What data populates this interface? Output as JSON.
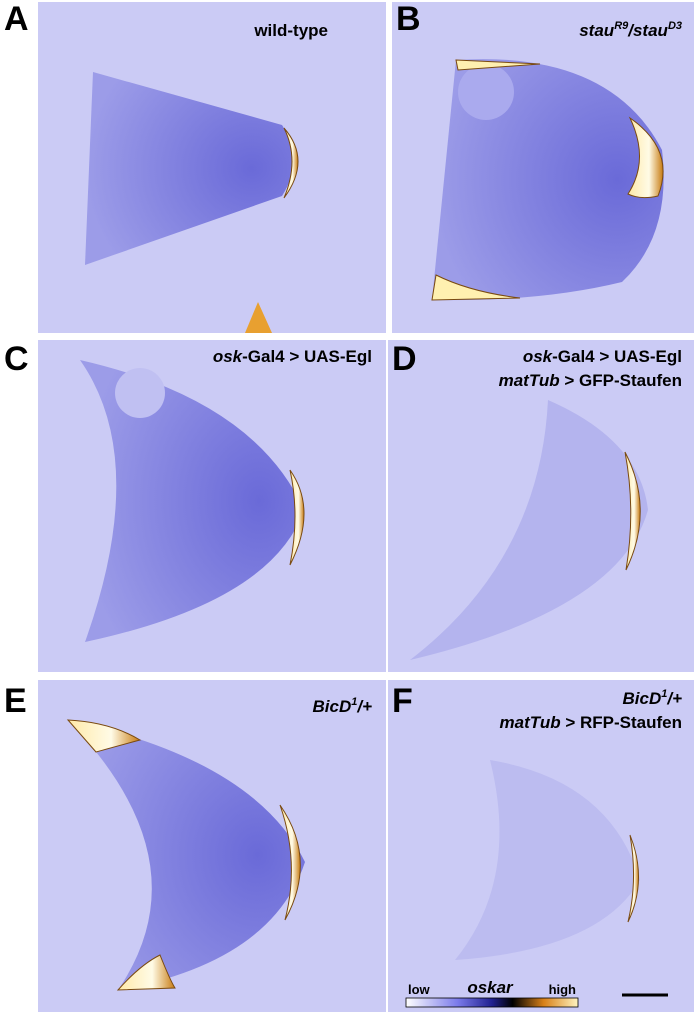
{
  "panels": [
    {
      "letter": "A",
      "lines": [
        [
          "wild-type"
        ]
      ]
    },
    {
      "letter": "B",
      "lines": [
        [
          "stau",
          "R9",
          "/stau",
          "D3"
        ]
      ]
    },
    {
      "letter": "C",
      "lines": [
        [
          "osk",
          "-Gal4 > UAS-Egl"
        ]
      ]
    },
    {
      "letter": "D",
      "lines": [
        [
          "osk",
          "-Gal4 > UAS-Egl"
        ],
        [
          "matTub",
          " > GFP-Staufen"
        ]
      ]
    },
    {
      "letter": "E",
      "lines": [
        [
          "BicD",
          "1",
          "/+"
        ]
      ]
    },
    {
      "letter": "F",
      "lines": [
        [
          "BicD",
          "1",
          "/+"
        ],
        [
          "matTub",
          " > RFP-Staufen"
        ]
      ]
    }
  ],
  "colorbar": {
    "low": "low",
    "gene": "oskar",
    "high": "high"
  }
}
